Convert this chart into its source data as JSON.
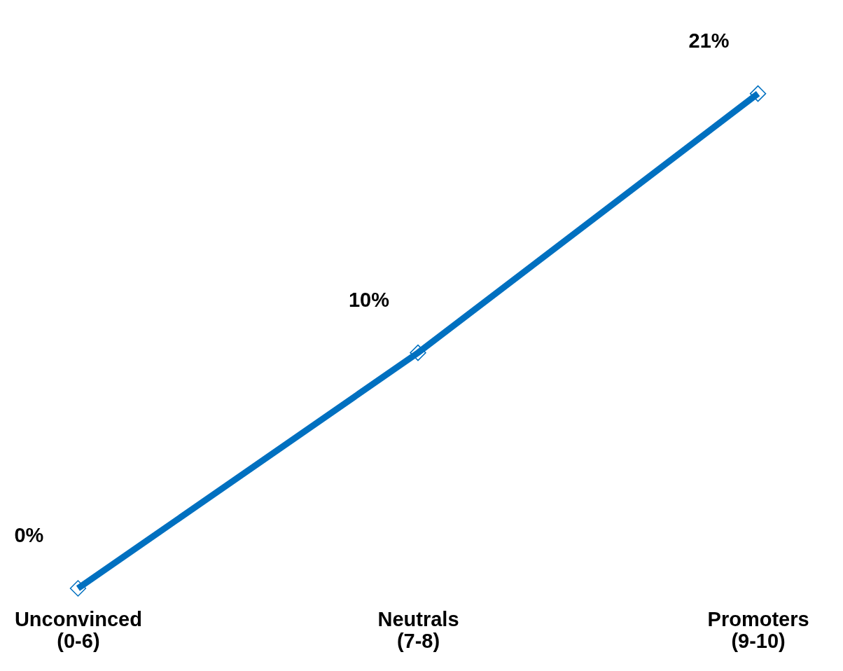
{
  "chart_data": {
    "type": "line",
    "categories": [
      "Unconvinced\n(0-6)",
      "Neutrals\n(7-8)",
      "Promoters\n(9-10)"
    ],
    "series": [
      {
        "color": "#0070c0",
        "values": [
          0,
          10,
          21
        ],
        "value_labels": [
          "0%",
          "10%",
          "21%"
        ]
      }
    ],
    "marker": "diamond",
    "line_style": "solid"
  }
}
